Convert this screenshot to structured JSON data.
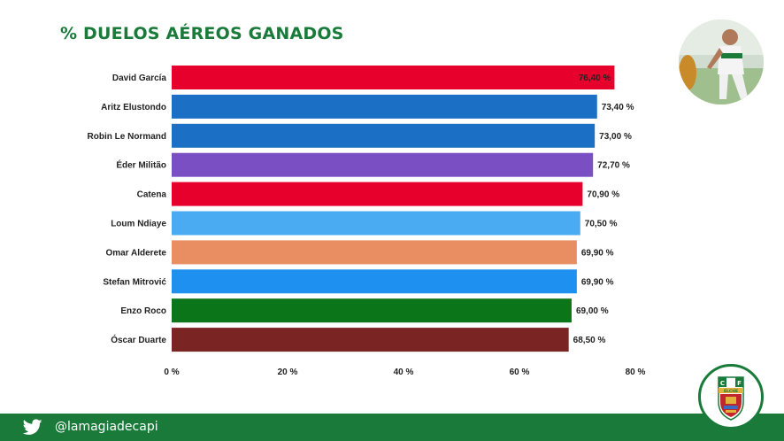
{
  "title": "% DUELOS AÉREOS GANADOS",
  "footer": {
    "handle": "@lamagiadecapi"
  },
  "icons": {
    "social": "twitter-icon",
    "photo": "player-photo",
    "crest": "elche-cf-crest"
  },
  "colors": {
    "brand_green": "#1a7a3a"
  },
  "crest_letters": [
    "C",
    "F",
    "ELCHE"
  ],
  "chart_data": {
    "type": "bar",
    "orientation": "horizontal",
    "title": "% DUELOS AÉREOS GANADOS",
    "xlabel": "",
    "ylabel": "",
    "xlim": [
      0,
      80
    ],
    "x_ticks": [
      0,
      20,
      40,
      60,
      80
    ],
    "x_tick_labels": [
      "0 %",
      "20 %",
      "40 %",
      "60 %",
      "80 %"
    ],
    "grid": false,
    "legend": "none",
    "categories": [
      "David García",
      "Aritz Elustondo",
      "Robin Le Normand",
      "Éder Militão",
      "Catena",
      "Loum Ndiaye",
      "Omar Alderete",
      "Stefan Mitrović",
      "Enzo Roco",
      "Óscar Duarte"
    ],
    "values": [
      76.4,
      73.4,
      73.0,
      72.7,
      70.9,
      70.5,
      69.9,
      69.9,
      69.0,
      68.5
    ],
    "value_labels": [
      "76,40 %",
      "73,40 %",
      "73,00 %",
      "72,70 %",
      "70,90 %",
      "70,50 %",
      "69,90 %",
      "69,90 %",
      "69,00 %",
      "68,50 %"
    ],
    "bar_colors": [
      "#e8002d",
      "#1b6fc4",
      "#1b6fc4",
      "#7a4fc4",
      "#e8002d",
      "#4aabf2",
      "#e88e62",
      "#1e90f0",
      "#0b7519",
      "#7a2424"
    ]
  }
}
